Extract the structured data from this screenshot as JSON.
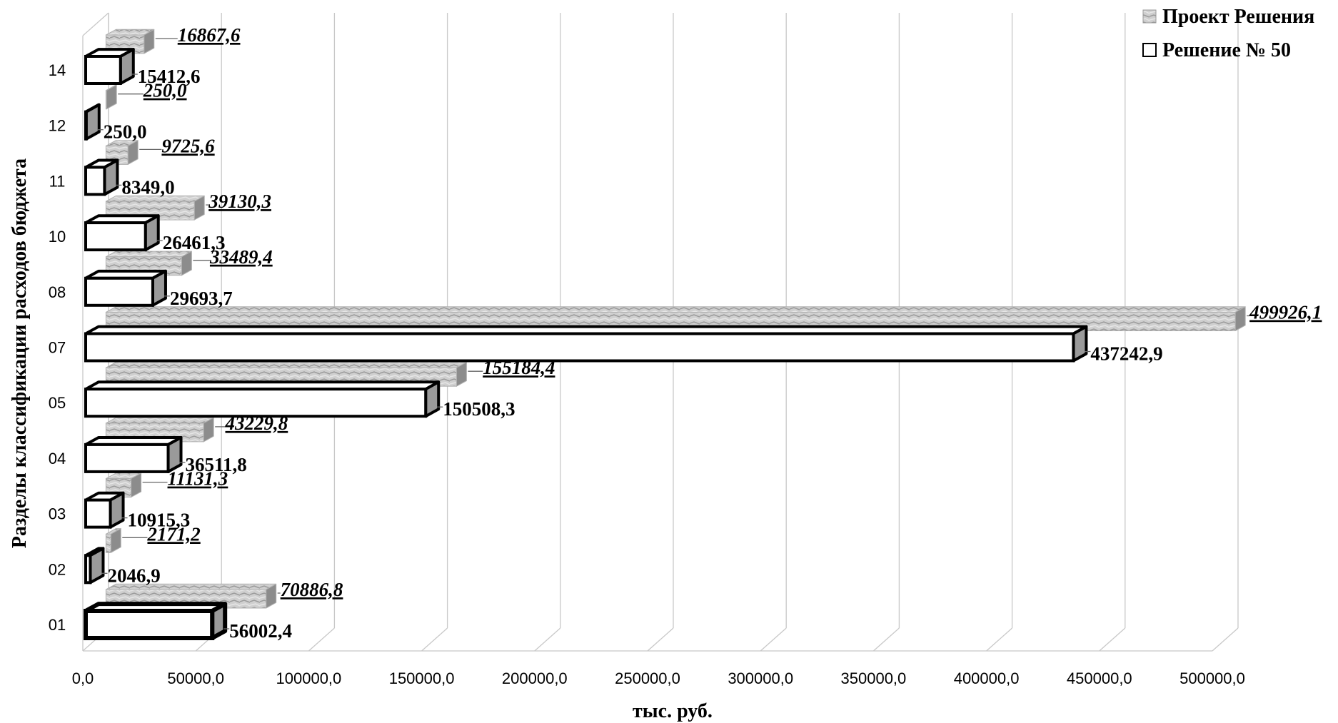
{
  "chart_data": {
    "type": "bar",
    "orientation": "horizontal",
    "style": "3d-clustered",
    "categories": [
      "01",
      "02",
      "03",
      "04",
      "05",
      "07",
      "08",
      "10",
      "11",
      "12",
      "14"
    ],
    "series": [
      {
        "name": "Проект Решения",
        "values": [
          70886.8,
          2171.2,
          11131.3,
          43229.8,
          155184.4,
          499926.1,
          33489.4,
          39130.3,
          9725.6,
          250.0,
          16867.6
        ],
        "labels": [
          "70886,8",
          "2171,2",
          "11131,3",
          "43229,8",
          "155184,4",
          "499926,1",
          "33489,4",
          "39130,3",
          "9725,6",
          "250,0",
          "16867,6"
        ],
        "color": "#bdbdbd"
      },
      {
        "name": "Решение № 50",
        "values": [
          56002.4,
          2046.9,
          10915.3,
          36511.8,
          150508.3,
          437242.9,
          29693.7,
          26461.3,
          8349.0,
          250.0,
          15412.6
        ],
        "labels": [
          "56002,4",
          "2046,9",
          "10915,3",
          "36511,8",
          "150508,3",
          "437242,9",
          "29693,7",
          "26461,3",
          "8349,0",
          "250,0",
          "15412,6"
        ],
        "color": "#ffffff"
      }
    ],
    "xlim": [
      0,
      500000
    ],
    "xticks": [
      0,
      50000,
      100000,
      150000,
      200000,
      250000,
      300000,
      350000,
      400000,
      450000,
      500000
    ],
    "xtick_labels": [
      "0,0",
      "50000,0",
      "100000,0",
      "150000,0",
      "200000,0",
      "250000,0",
      "300000,0",
      "350000,0",
      "400000,0",
      "450000,0",
      "500000,0"
    ],
    "xlabel": "тыс. руб.",
    "ylabel": "Разделы классификации расходов бюджета",
    "grid": true,
    "legend_position": "top-right"
  }
}
